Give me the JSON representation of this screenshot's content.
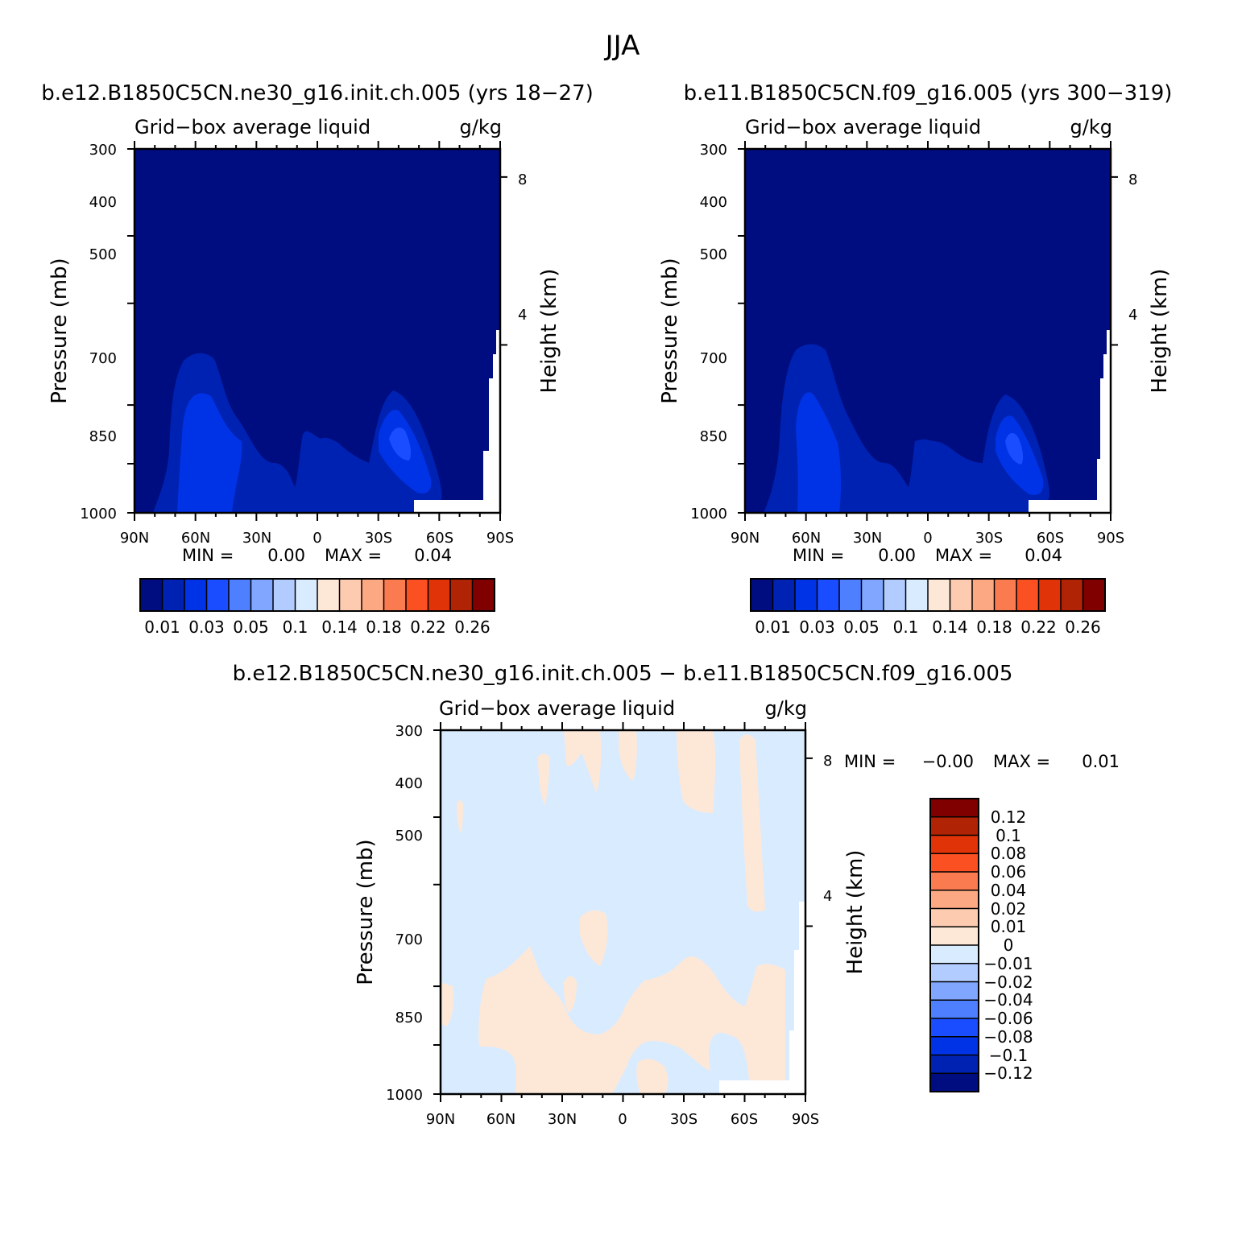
{
  "figure": {
    "title": "JJA"
  },
  "colors": {
    "abs_palette": [
      "#000d80",
      "#0022b3",
      "#0033e6",
      "#1a4dff",
      "#4d7fff",
      "#80a6ff",
      "#b3ccff",
      "#d9ebff",
      "#fde8d8",
      "#fdcbb0",
      "#fca882",
      "#fb7b50",
      "#fb5022",
      "#e03408",
      "#b02405",
      "#800000"
    ],
    "diff_palette": [
      "#000d80",
      "#0022b3",
      "#0033e6",
      "#1a4dff",
      "#4d7fff",
      "#80a6ff",
      "#b3ccff",
      "#d9ebff",
      "#fde8d8",
      "#fdcbb0",
      "#fca882",
      "#fb7b50",
      "#fb5022",
      "#e03408",
      "#b02405",
      "#800000"
    ]
  },
  "chart_data": [
    {
      "type": "heatmap",
      "panel": "top-left",
      "case_title": "b.e12.B1850C5CN.ne30_g16.init.ch.005 (yrs 18−27)",
      "field": "Grid−box average liquid",
      "units": "g/kg",
      "ylabel": "Pressure (mb)",
      "y2label": "Height (km)",
      "xticks": [
        "90N",
        "60N",
        "30N",
        "0",
        "30S",
        "60S",
        "90S"
      ],
      "yticks": [
        "300",
        "400",
        "500",
        "700",
        "850",
        "1000"
      ],
      "y2ticks": [
        "8",
        "4"
      ],
      "ylim": [
        1000,
        300
      ],
      "xlim": [
        90,
        -90
      ],
      "yscale": "log",
      "min_label": "MIN =",
      "min_value": "0.00",
      "max_label": "MAX =",
      "max_value": "0.04",
      "colorbar_labels": [
        "0.01",
        "0.03",
        "0.05",
        "0.1",
        "0.14",
        "0.18",
        "0.22",
        "0.26"
      ],
      "legend_position": "bottom"
    },
    {
      "type": "heatmap",
      "panel": "top-right",
      "case_title": "b.e11.B1850C5CN.f09_g16.005 (yrs 300−319)",
      "field": "Grid−box average liquid",
      "units": "g/kg",
      "ylabel": "Pressure (mb)",
      "y2label": "Height (km)",
      "xticks": [
        "90N",
        "60N",
        "30N",
        "0",
        "30S",
        "60S",
        "90S"
      ],
      "yticks": [
        "300",
        "400",
        "500",
        "700",
        "850",
        "1000"
      ],
      "y2ticks": [
        "8",
        "4"
      ],
      "ylim": [
        1000,
        300
      ],
      "xlim": [
        90,
        -90
      ],
      "yscale": "log",
      "min_label": "MIN =",
      "min_value": "0.00",
      "max_label": "MAX =",
      "max_value": "0.04",
      "colorbar_labels": [
        "0.01",
        "0.03",
        "0.05",
        "0.1",
        "0.14",
        "0.18",
        "0.22",
        "0.26"
      ],
      "legend_position": "bottom"
    },
    {
      "type": "heatmap",
      "panel": "bottom",
      "case_title": "b.e12.B1850C5CN.ne30_g16.init.ch.005 − b.e11.B1850C5CN.f09_g16.005",
      "field": "Grid−box average liquid",
      "units": "g/kg",
      "ylabel": "Pressure (mb)",
      "y2label": "Height (km)",
      "xticks": [
        "90N",
        "60N",
        "30N",
        "0",
        "30S",
        "60S",
        "90S"
      ],
      "yticks": [
        "300",
        "400",
        "500",
        "700",
        "850",
        "1000"
      ],
      "y2ticks": [
        "8",
        "4"
      ],
      "ylim": [
        1000,
        300
      ],
      "xlim": [
        90,
        -90
      ],
      "yscale": "log",
      "min_label": "MIN =",
      "min_value": "−0.00",
      "max_label": "MAX =",
      "max_value": "0.01",
      "colorbar_labels": [
        "0.12",
        "0.1",
        "0.08",
        "0.06",
        "0.04",
        "0.02",
        "0.01",
        "0",
        "−0.01",
        "−0.02",
        "−0.04",
        "−0.06",
        "−0.08",
        "−0.1",
        "−0.12"
      ],
      "legend_position": "right"
    }
  ]
}
